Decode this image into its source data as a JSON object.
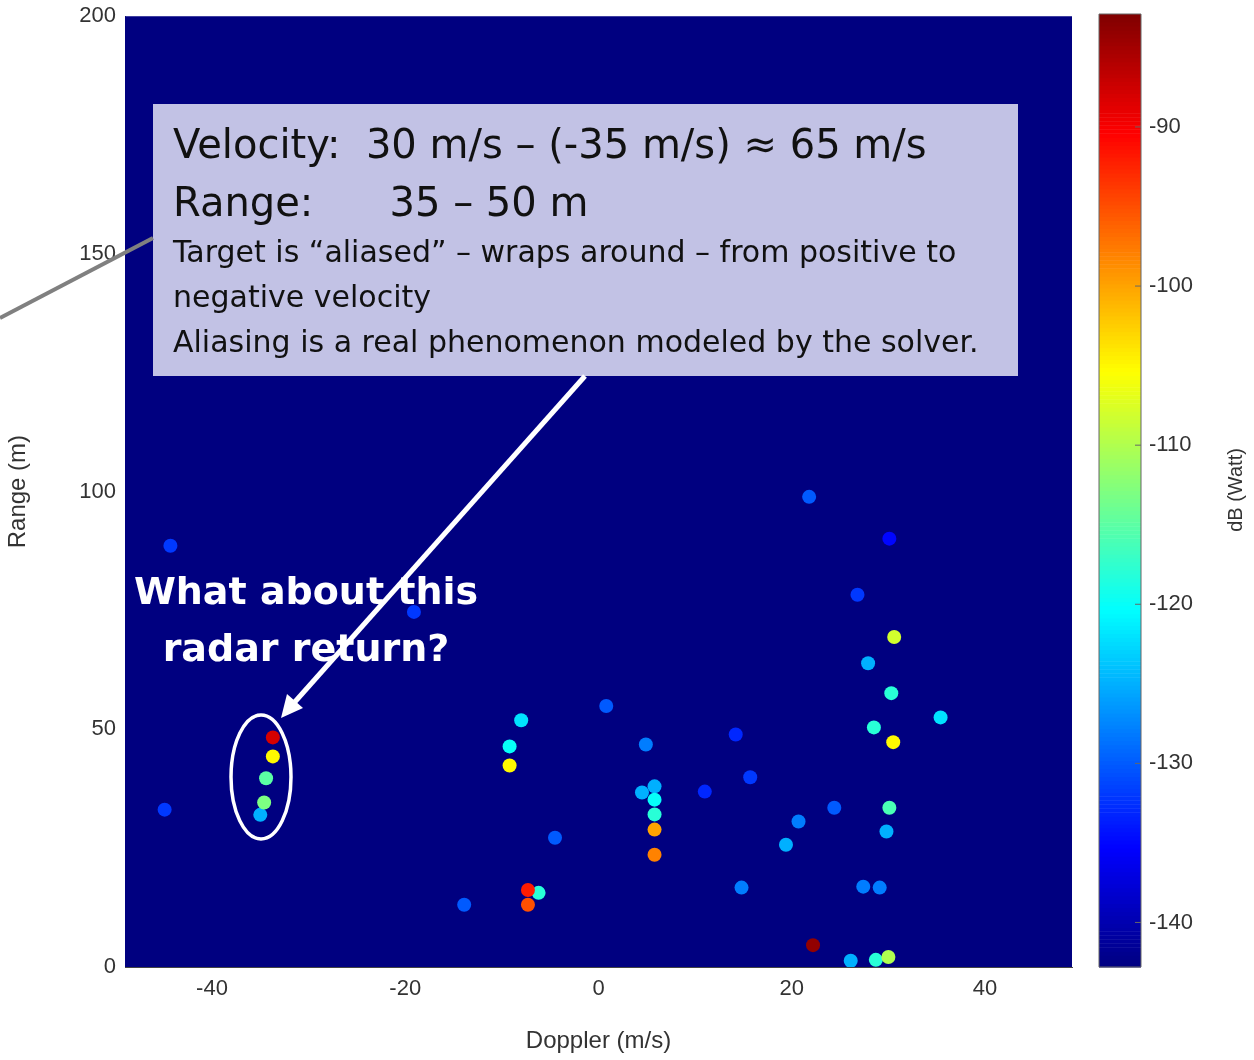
{
  "chart_data": {
    "type": "scatter",
    "xlabel": "Doppler (m/s)",
    "ylabel": "Range (m)",
    "clabel": "dB (Watt)",
    "marker": "circle",
    "x": [
      -33.7,
      -33.7,
      -34.4,
      -34.6,
      -35,
      -9.2,
      -9.2,
      -8,
      -7.3,
      -7.3,
      -6.2,
      5.8,
      5.8,
      5.8,
      5.8,
      5.8,
      4.5,
      4.9,
      22.2,
      28.7,
      30,
      26.1,
      30.6,
      30.5,
      30.3,
      30.1,
      28.5,
      35.4,
      27.9,
      29.8,
      19.4,
      20.7,
      21.8,
      14.8,
      0.8,
      -13.9,
      -44.3,
      -44.9,
      -19.1,
      -4.5,
      27.4,
      29.1,
      26.8,
      30.1,
      24.4,
      15.7,
      11,
      14.2
    ],
    "values": [
      48.3,
      44.3,
      39.7,
      34.6,
      32,
      42.4,
      46.4,
      51.9,
      16.2,
      13.1,
      15.6,
      28.9,
      23.6,
      32.1,
      35.2,
      38,
      36.7,
      46.8,
      4.6,
      1.5,
      2.1,
      1.3,
      69.4,
      47.3,
      57.6,
      33.5,
      50.4,
      52.5,
      63.9,
      28.5,
      25.7,
      30.6,
      98.9,
      16.7,
      54.9,
      13.1,
      88.6,
      33.1,
      74.7,
      27.2,
      16.9,
      16.7,
      78.3,
      90.1,
      33.5,
      39.9,
      36.9,
      48.9
    ],
    "cvalues": [
      -88,
      -105,
      -115,
      -113,
      -125,
      -105,
      -120,
      -122,
      -92,
      -95,
      -118,
      -100,
      -98,
      -118,
      -120,
      -125,
      -125,
      -128,
      -84,
      -118,
      -110,
      -125,
      -108,
      -105,
      -118,
      -116,
      -118,
      -122,
      -125,
      -125,
      -125,
      -128,
      -130,
      -128,
      -130,
      -130,
      -132,
      -132,
      -132,
      -130,
      -128,
      -128,
      -132,
      -135,
      -130,
      -132,
      -133,
      -133
    ],
    "xlim": [
      -49,
      49
    ],
    "xticks": [
      -40,
      -20,
      0,
      20,
      40
    ],
    "ylim": [
      0,
      200
    ],
    "yticks": [
      0,
      50,
      100,
      150,
      200
    ],
    "clim": [
      -142.8,
      -82.9
    ],
    "cticks": [
      -90,
      -100,
      -110,
      -120,
      -130,
      -140
    ],
    "annotations": [
      "Velocity:  30 m/s – (-35 m/s) ≈ 65 m/s",
      "Range:      35 – 50 m",
      "Target is “aliased” – wraps around – from positive to negative velocity",
      "Aliasing is a real phenomenon modeled by the solver.",
      "What about this radar return?"
    ]
  }
}
